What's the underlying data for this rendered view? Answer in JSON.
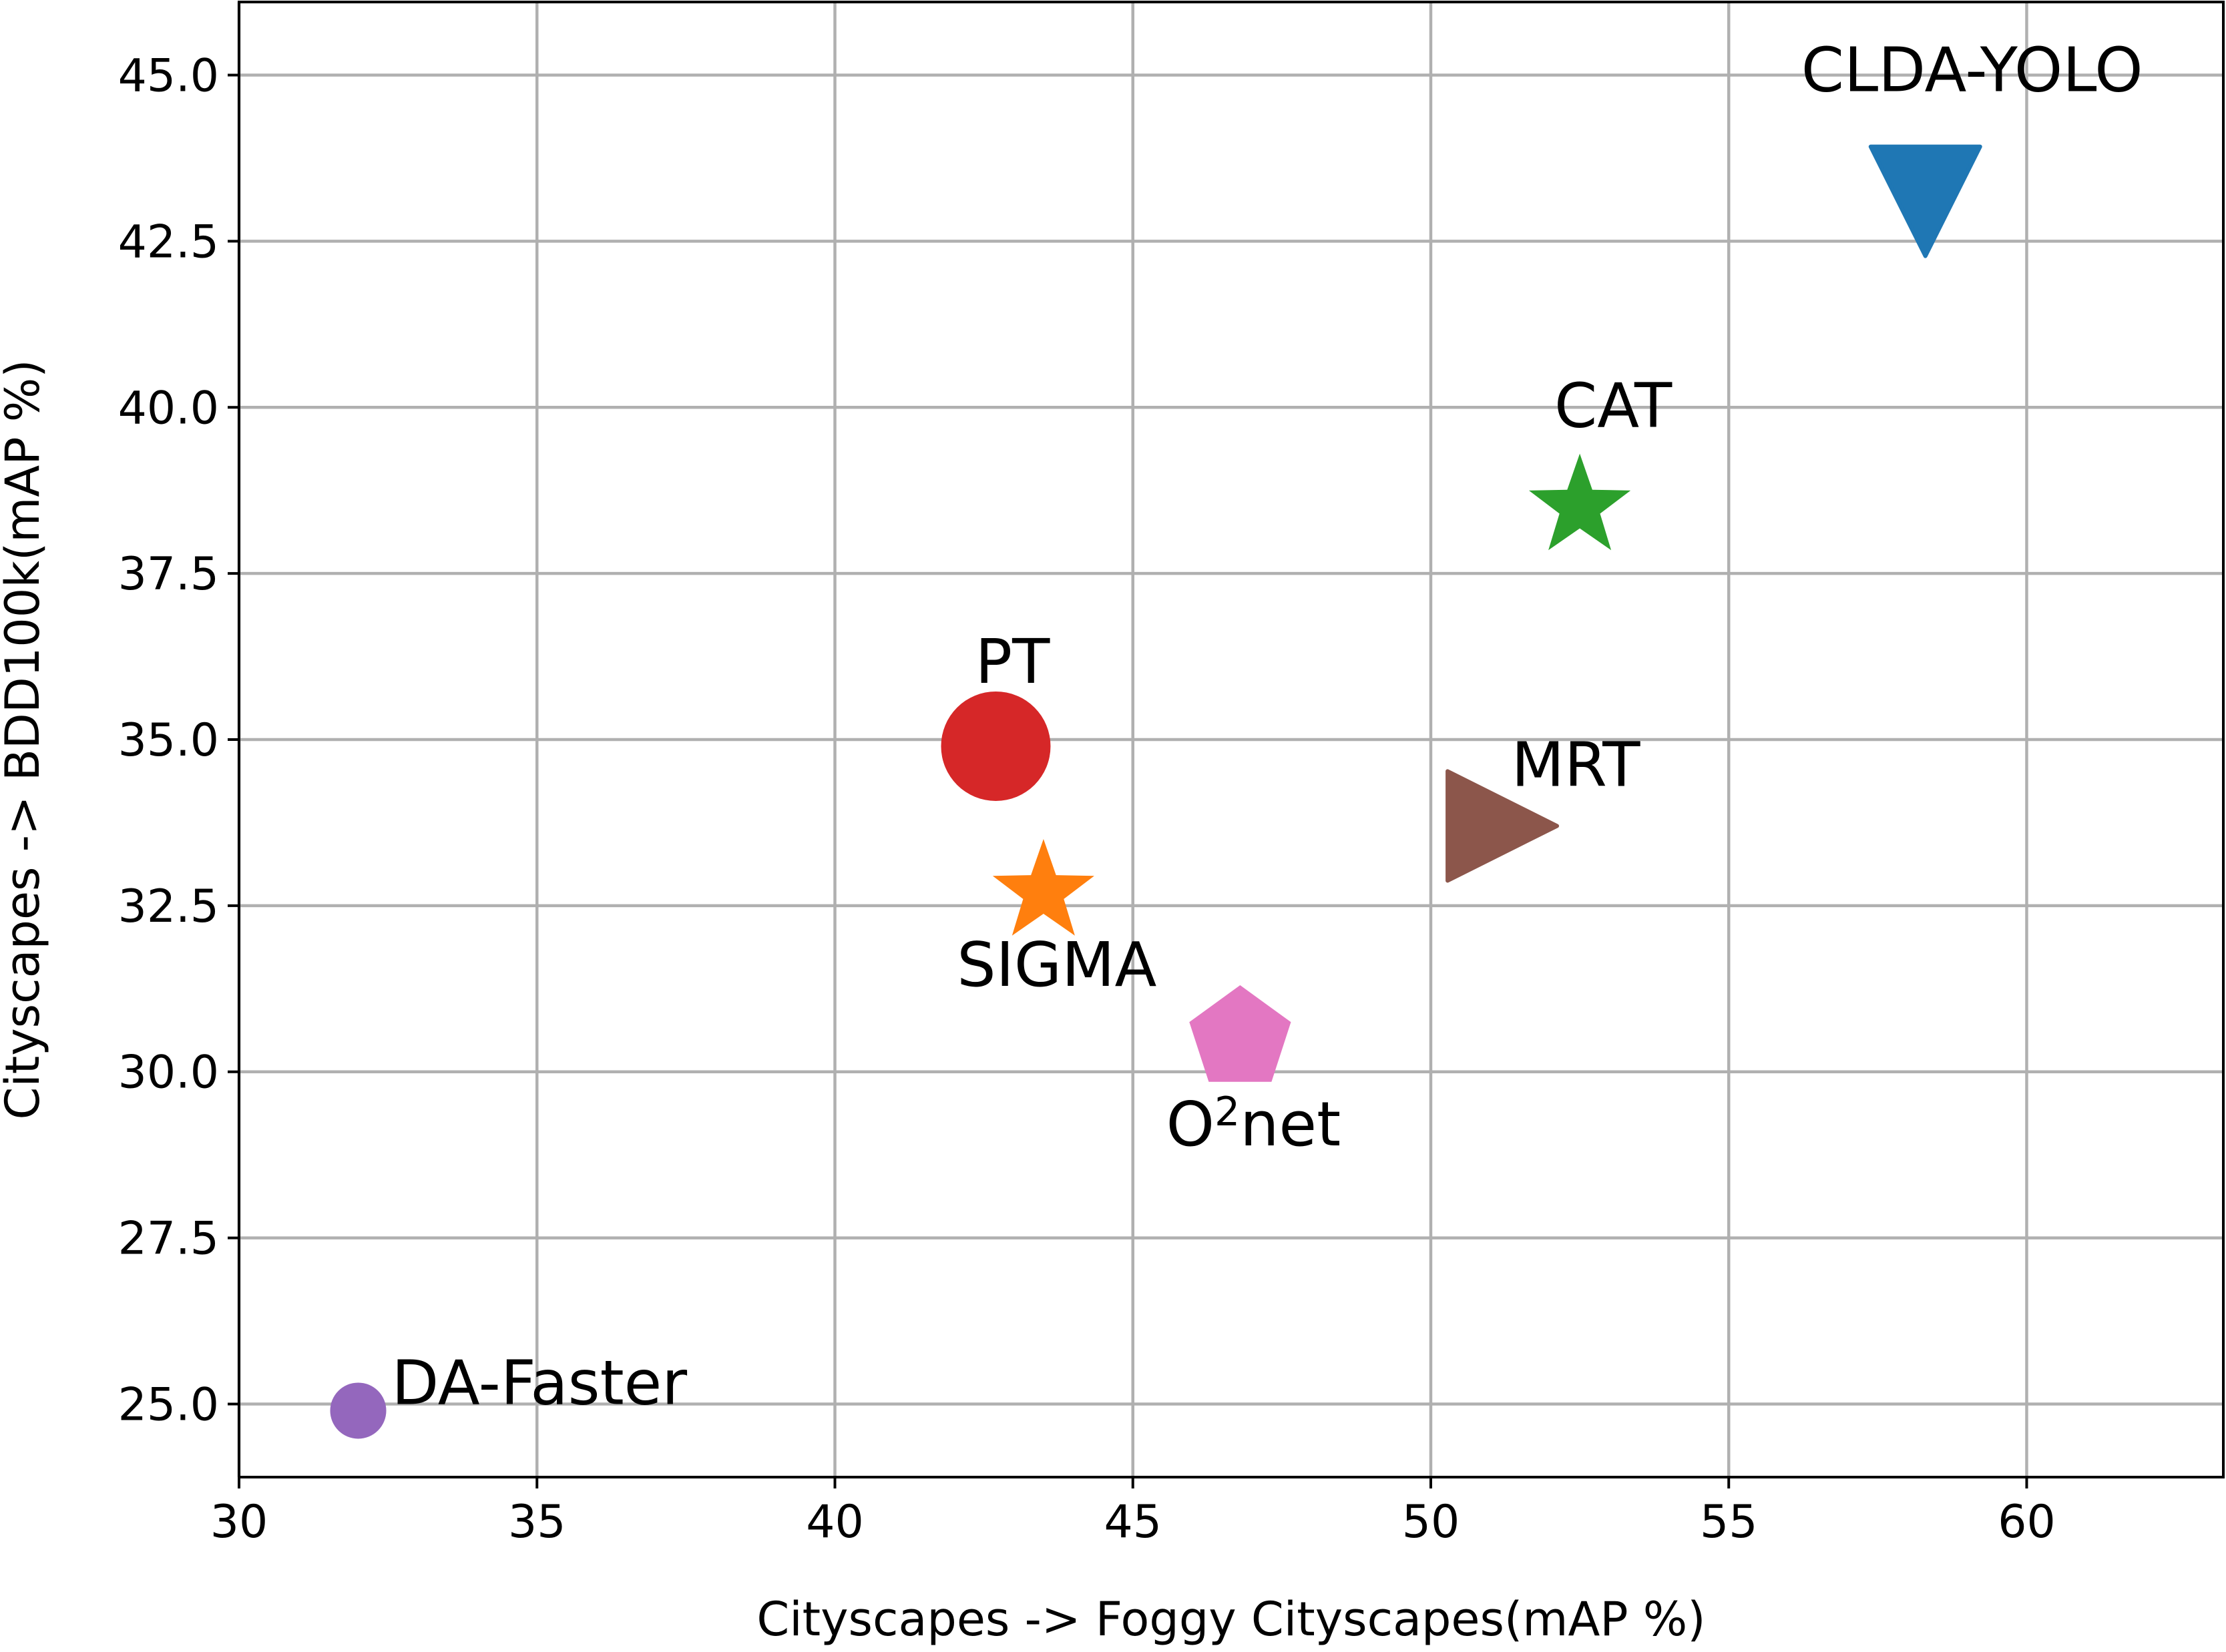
{
  "chart_data": {
    "type": "scatter",
    "title": "",
    "xlabel": "Cityscapes -> Foggy Cityscapes(mAP %)",
    "ylabel": "Cityscapes -> BDD100k(mAP %)",
    "xlim": [
      30,
      63.3
    ],
    "ylim": [
      23.9,
      46.1
    ],
    "grid": true,
    "xticks": [
      30,
      35,
      40,
      45,
      50,
      55,
      60
    ],
    "xtick_labels": [
      "30",
      "35",
      "40",
      "45",
      "50",
      "55",
      "60"
    ],
    "yticks": [
      25.0,
      27.5,
      30.0,
      32.5,
      35.0,
      37.5,
      40.0,
      42.5,
      45.0
    ],
    "ytick_labels": [
      "25.0",
      "27.5",
      "30.0",
      "32.5",
      "35.0",
      "37.5",
      "40.0",
      "42.5",
      "45.0"
    ],
    "points": [
      {
        "name": "DA-Faster",
        "x": 32.0,
        "y": 24.9,
        "marker": "circle",
        "size": "small",
        "color": "#9467bd",
        "label_color": "#000000",
        "label_position": "right"
      },
      {
        "name": "PT",
        "x": 42.7,
        "y": 34.9,
        "marker": "circle",
        "size": "large",
        "color": "#d62728",
        "label_color": "#000000",
        "label_position": "above"
      },
      {
        "name": "SIGMA",
        "x": 43.5,
        "y": 32.7,
        "marker": "star",
        "size": "medium",
        "color": "#ff7f0e",
        "label_color": "#000000",
        "label_position": "below"
      },
      {
        "name": "O²net",
        "label_base": "O",
        "label_sup": "2",
        "label_rest": "net",
        "x": 46.8,
        "y": 30.5,
        "marker": "pentagon",
        "size": "medium",
        "color": "#e377c2",
        "label_color": "#000000",
        "label_position": "below"
      },
      {
        "name": "MRT",
        "x": 51.2,
        "y": 33.7,
        "marker": "triangle-right",
        "size": "medium",
        "color": "#8c564b",
        "label_color": "#000000",
        "label_position": "above-right"
      },
      {
        "name": "CAT",
        "x": 52.5,
        "y": 38.5,
        "marker": "star",
        "size": "medium",
        "color": "#2ca02c",
        "label_color": "#000000",
        "label_position": "above"
      },
      {
        "name": "CLDA-YOLO",
        "x": 58.3,
        "y": 43.1,
        "marker": "triangle-down",
        "size": "medium",
        "color": "#1f77b4",
        "label_color": "#ff0000",
        "label_position": "above"
      }
    ]
  }
}
